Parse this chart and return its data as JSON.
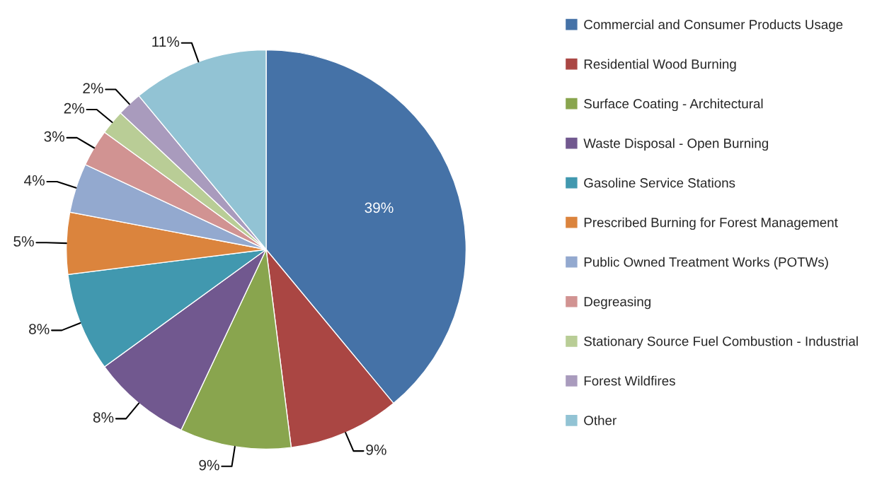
{
  "chart_data": {
    "type": "pie",
    "categories": [
      "Commercial and Consumer Products Usage",
      "Residential Wood Burning",
      "Surface Coating - Architectural",
      "Waste Disposal - Open Burning",
      "Gasoline Service Stations",
      "Prescribed Burning for Forest Management",
      "Public Owned Treatment Works (POTWs)",
      "Degreasing",
      "Stationary Source Fuel Combustion - Industrial",
      "Forest Wildfires",
      "Other"
    ],
    "values": [
      39,
      9,
      9,
      8,
      8,
      5,
      4,
      3,
      2,
      2,
      11
    ],
    "colors": [
      "#4572a7",
      "#aa4643",
      "#89a54e",
      "#71588f",
      "#4198af",
      "#db843d",
      "#93a9cf",
      "#d19392",
      "#b9cd96",
      "#a99bbd",
      "#92c3d4"
    ],
    "value_labels": [
      "39%",
      "9%",
      "9%",
      "8%",
      "8%",
      "5%",
      "4%",
      "3%",
      "2%",
      "2%",
      "11%"
    ],
    "legend": "right"
  }
}
